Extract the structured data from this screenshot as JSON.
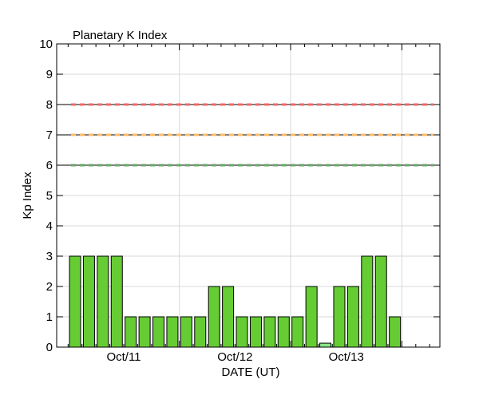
{
  "chart_data": {
    "type": "bar",
    "title": "Planetary K Index",
    "xlabel": "DATE (UT)",
    "ylabel": "Kp Index",
    "ylim": [
      0,
      10
    ],
    "yticks": [
      0,
      1,
      2,
      3,
      4,
      5,
      6,
      7,
      8,
      9,
      10
    ],
    "day_labels": [
      "Oct/11",
      "Oct/12",
      "Oct/13"
    ],
    "interval_hours": 3,
    "values": [
      3,
      3,
      3,
      3,
      1,
      1,
      1,
      1,
      1,
      1,
      2,
      2,
      1,
      1,
      1,
      1,
      1,
      2,
      0.13,
      2,
      2,
      3,
      3,
      1
    ],
    "bar_color": "#66cc33",
    "bar_color_low": "#88e888",
    "bar_outline": "#000000",
    "threshold_lines": [
      {
        "level": 8,
        "color": "#ee6666"
      },
      {
        "level": 7,
        "color": "#ffbb66"
      },
      {
        "level": 6,
        "color": "#66aa66"
      }
    ],
    "grid": true
  }
}
